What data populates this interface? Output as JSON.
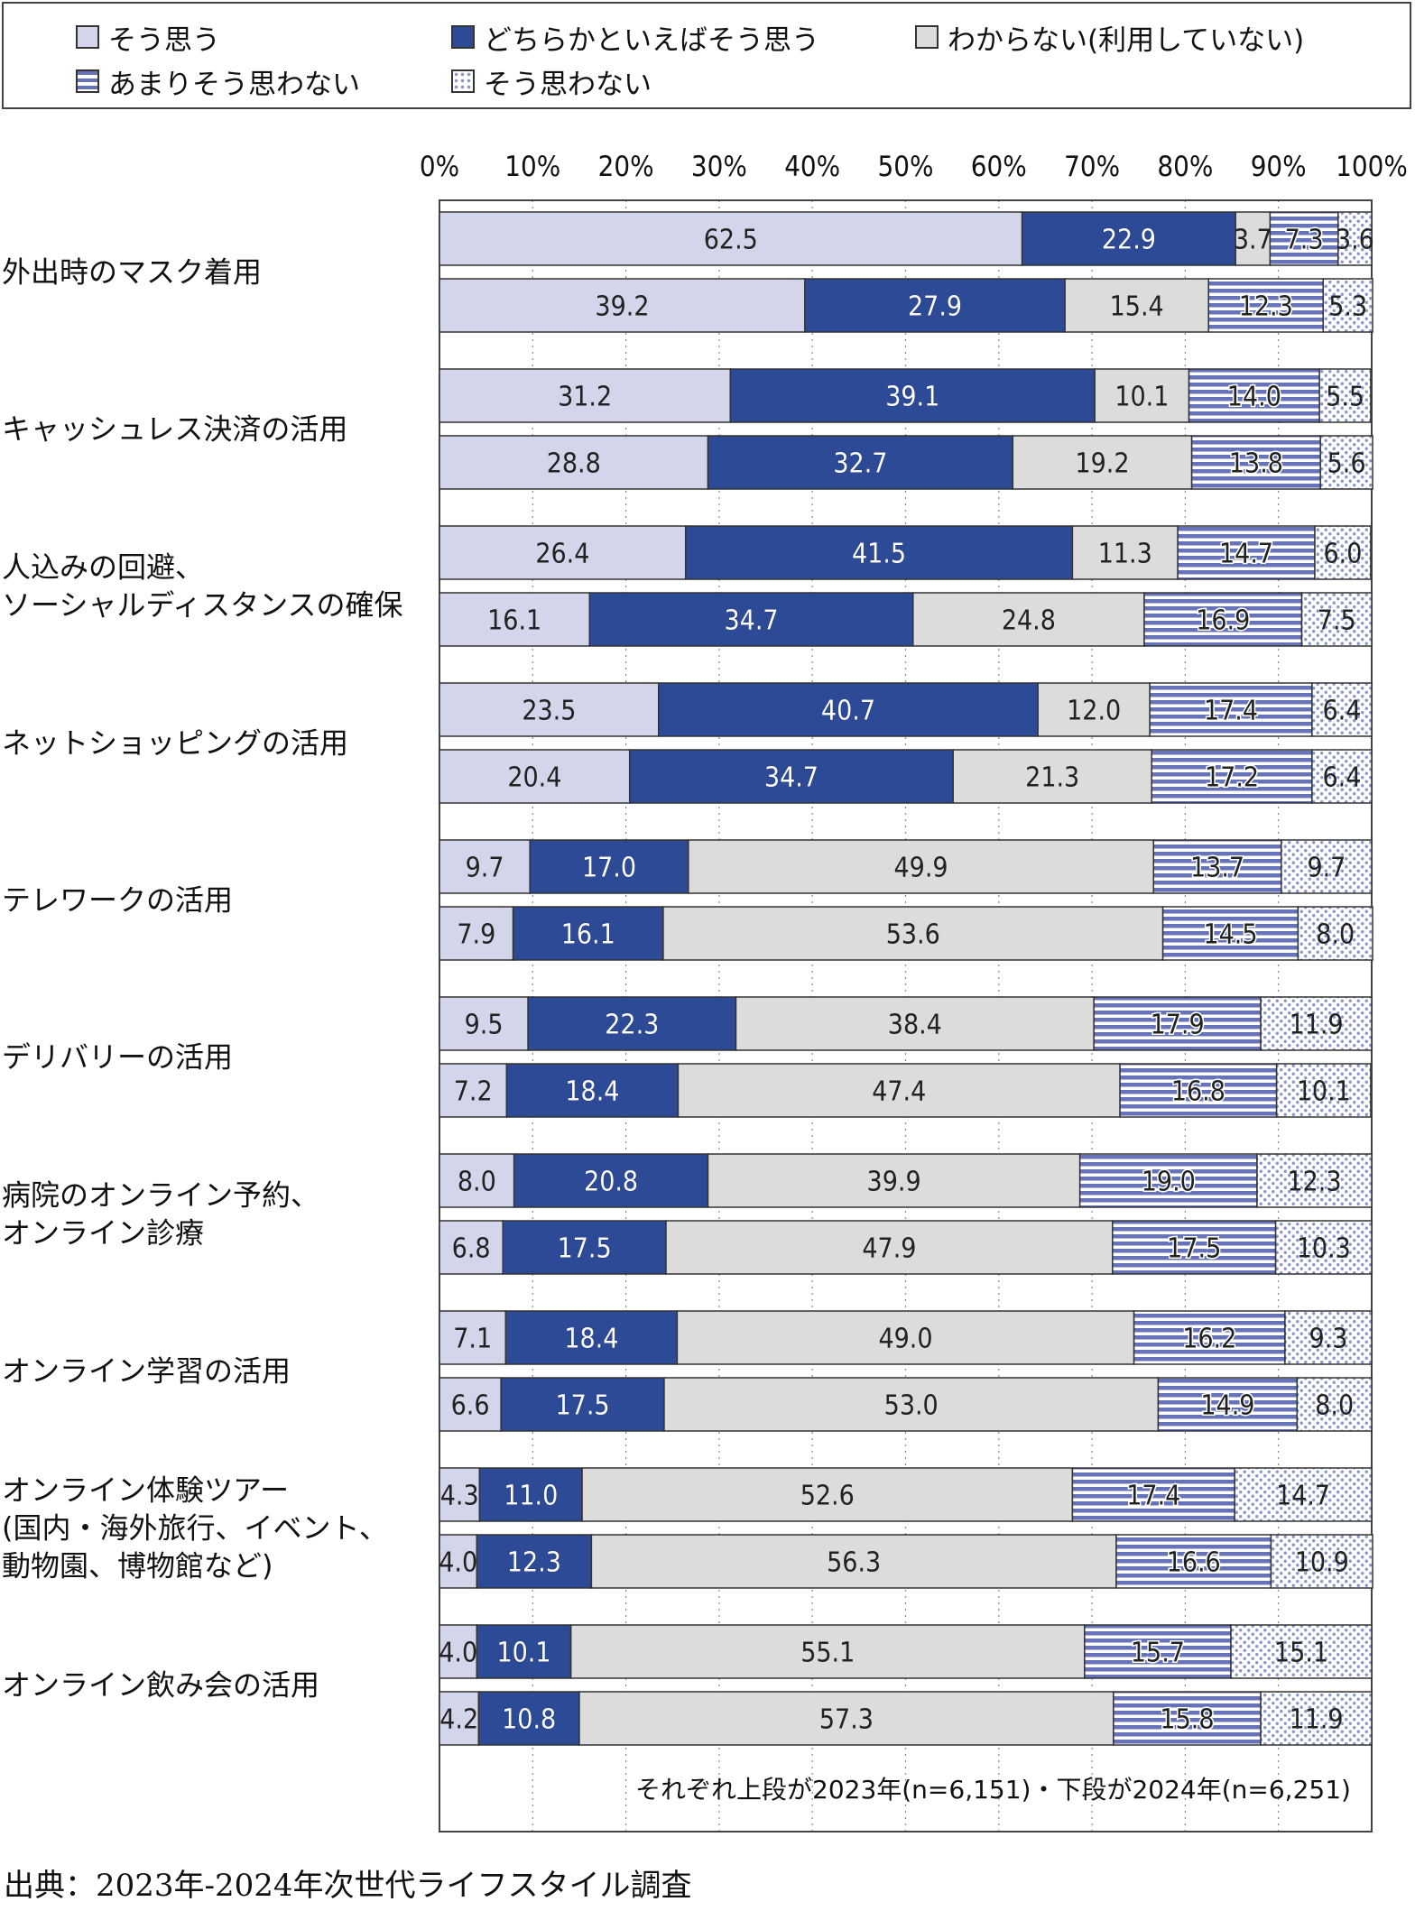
{
  "chart_data": {
    "type": "bar",
    "orientation": "horizontal",
    "stacked": true,
    "xlim": [
      0,
      100
    ],
    "x_ticks": [
      "0%",
      "10%",
      "20%",
      "30%",
      "40%",
      "50%",
      "60%",
      "70%",
      "80%",
      "90%",
      "100%"
    ],
    "legend_position": "top",
    "categories": [
      "外出時のマスク着用",
      "キャッシュレス決済の活用",
      "人込みの回避、\nソーシャルディスタンスの確保",
      "ネットショッピングの活用",
      "テレワークの活用",
      "デリバリーの活用",
      "病院のオンライン予約、\nオンライン診療",
      " オンライン学習の活用",
      "オンライン体験ツアー\n(国内・海外旅行、イベント、\n動物園、博物館など)",
      "オンライン飲み会の活用"
    ],
    "series": [
      {
        "name": "そう思う",
        "color": "#d3d6ea",
        "pattern": "solid",
        "values_2023": [
          62.5,
          31.2,
          26.4,
          23.5,
          9.7,
          9.5,
          8.0,
          7.1,
          4.3,
          4.0
        ],
        "values_2024": [
          39.2,
          28.8,
          16.1,
          20.4,
          7.9,
          7.2,
          6.8,
          6.6,
          4.0,
          4.2
        ]
      },
      {
        "name": "どちらかといえばそう思う",
        "color": "#2d4a96",
        "pattern": "solid",
        "values_2023": [
          22.9,
          39.1,
          41.5,
          40.7,
          17.0,
          22.3,
          20.8,
          18.4,
          11.0,
          10.1
        ],
        "values_2024": [
          27.9,
          32.7,
          34.7,
          34.7,
          16.1,
          18.4,
          17.5,
          17.5,
          12.3,
          10.8
        ]
      },
      {
        "name": "わからない(利用していない)",
        "color": "#dcdcdc",
        "pattern": "solid",
        "values_2023": [
          3.7,
          10.1,
          11.3,
          12.0,
          49.9,
          38.4,
          39.9,
          49.0,
          52.6,
          55.1
        ],
        "values_2024": [
          15.4,
          19.2,
          24.8,
          21.3,
          53.6,
          47.4,
          47.9,
          53.0,
          56.3,
          57.3
        ]
      },
      {
        "name": "あまりそう思わない",
        "color": "#6673b8",
        "pattern": "stripes",
        "values_2023": [
          7.3,
          14.0,
          14.7,
          17.4,
          13.7,
          17.9,
          19.0,
          16.2,
          17.4,
          15.7
        ],
        "values_2024": [
          12.3,
          13.8,
          16.9,
          17.2,
          14.5,
          16.8,
          17.5,
          14.9,
          16.6,
          15.8
        ]
      },
      {
        "name": "そう思わない",
        "color": "#8a95c8",
        "pattern": "dots",
        "values_2023": [
          3.6,
          5.5,
          6.0,
          6.4,
          9.7,
          11.9,
          12.3,
          9.3,
          14.7,
          15.1
        ],
        "values_2024": [
          5.3,
          5.6,
          7.5,
          6.4,
          8.0,
          10.1,
          10.3,
          8.0,
          10.9,
          11.9
        ]
      }
    ],
    "annotation": "それぞれ上段が2023年(n=6,151)・下段が2024年(n=6,251)"
  },
  "source": "出典：2023年-2024年次世代ライフスタイル調査"
}
